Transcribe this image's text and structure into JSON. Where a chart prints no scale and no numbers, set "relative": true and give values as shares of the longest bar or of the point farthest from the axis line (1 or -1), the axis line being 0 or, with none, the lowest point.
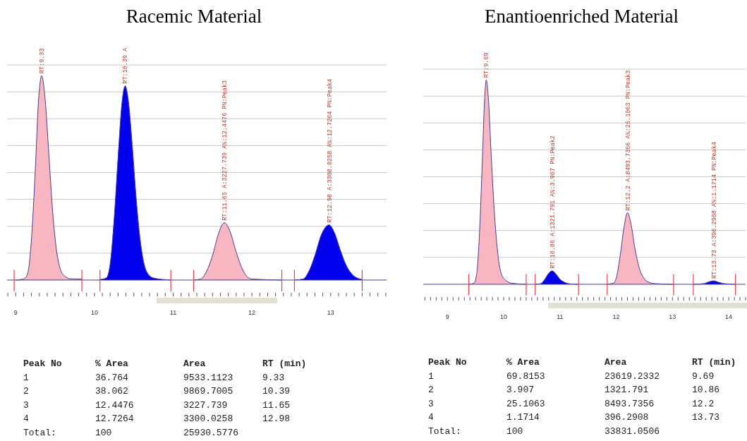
{
  "chart_data": [
    {
      "type": "area",
      "title": "Racemic Material",
      "relative": true,
      "grid": true,
      "xlim": [
        8.89,
        13.71
      ],
      "xticks": [
        {
          "value": 8.9,
          "label": null
        },
        9,
        {
          "value": 9.1,
          "label": null
        },
        {
          "value": 9.2,
          "label": null
        },
        {
          "value": 9.3,
          "label": null
        },
        {
          "value": 9.4,
          "label": null
        },
        {
          "value": 9.5,
          "label": null
        },
        {
          "value": 9.6,
          "label": null
        },
        {
          "value": 9.7,
          "label": null
        },
        {
          "value": 9.8,
          "label": null
        },
        {
          "value": 9.9,
          "label": null
        },
        10,
        {
          "value": 10.1,
          "label": null
        },
        {
          "value": 10.2,
          "label": null
        },
        {
          "value": 10.3,
          "label": null
        },
        {
          "value": 10.4,
          "label": null
        },
        {
          "value": 10.5,
          "label": null
        },
        {
          "value": 10.6,
          "label": null
        },
        {
          "value": 10.7,
          "label": null
        },
        {
          "value": 10.8,
          "label": null
        },
        {
          "value": 10.9,
          "label": null
        },
        11,
        {
          "value": 11.1,
          "label": null
        },
        {
          "value": 11.2,
          "label": null
        },
        {
          "value": 11.3,
          "label": null
        },
        {
          "value": 11.4,
          "label": null
        },
        {
          "value": 11.5,
          "label": null
        },
        {
          "value": 11.6,
          "label": null
        },
        {
          "value": 11.7,
          "label": null
        },
        {
          "value": 11.8,
          "label": null
        },
        {
          "value": 11.9,
          "label": null
        },
        12,
        {
          "value": 12.1,
          "label": null
        },
        {
          "value": 12.2,
          "label": null
        },
        {
          "value": 12.3,
          "label": null
        },
        {
          "value": 12.4,
          "label": null
        },
        {
          "value": 12.5,
          "label": null
        },
        {
          "value": 12.6,
          "label": null
        },
        {
          "value": 12.7,
          "label": null
        },
        {
          "value": 12.8,
          "label": null
        },
        {
          "value": 12.9,
          "label": null
        },
        13,
        {
          "value": 13.1,
          "label": null
        },
        {
          "value": 13.2,
          "label": null
        },
        {
          "value": 13.3,
          "label": null
        },
        {
          "value": 13.4,
          "label": null
        },
        {
          "value": 13.5,
          "label": null
        },
        {
          "value": 13.6,
          "label": null
        },
        {
          "value": 13.7,
          "label": null
        }
      ],
      "series": [
        {
          "type": "line",
          "color": "#4b3b8f",
          "x": [
            8.89,
            13.71
          ],
          "values": [
            0,
            0
          ]
        },
        {
          "type": "line",
          "color": "#e8404a",
          "x": [
            8.98,
            8.98
          ],
          "values": [
            -0.055,
            0.05
          ]
        },
        {
          "type": "line",
          "color": "#e8404a",
          "x": [
            9.84,
            9.84
          ],
          "values": [
            -0.055,
            0.05
          ]
        },
        {
          "type": "line",
          "color": "#e8404a",
          "x": [
            10.07,
            10.07
          ],
          "values": [
            -0.055,
            0.05
          ]
        },
        {
          "type": "line",
          "color": "#e8404a",
          "x": [
            10.97,
            10.97
          ],
          "values": [
            -0.055,
            0.05
          ]
        },
        {
          "type": "line",
          "color": "#e8404a",
          "x": [
            11.26,
            11.26
          ],
          "values": [
            -0.055,
            0.05
          ]
        },
        {
          "type": "line",
          "color": "#e8404a",
          "x": [
            12.38,
            12.38
          ],
          "values": [
            -0.055,
            0.05
          ]
        },
        {
          "type": "line",
          "color": "#e8404a",
          "x": [
            12.54,
            12.54
          ],
          "values": [
            -0.055,
            0.05
          ]
        },
        {
          "type": "line",
          "color": "#e8404a",
          "x": [
            13.4,
            13.4
          ],
          "values": [
            -0.055,
            0.05
          ]
        },
        {
          "color": "#f7b6c2",
          "x": [
            9.0,
            9.1,
            9.15,
            9.2,
            9.25,
            9.29,
            9.33,
            9.37,
            9.42,
            9.47,
            9.52,
            9.57,
            9.62,
            9.7,
            9.84
          ],
          "values": [
            0,
            0.005,
            0.03,
            0.2,
            0.55,
            0.88,
            1,
            0.9,
            0.62,
            0.33,
            0.14,
            0.05,
            0.02,
            0.006,
            0.005
          ]
        },
        {
          "color": "#0000ee",
          "x": [
            10.07,
            10.15,
            10.2,
            10.25,
            10.3,
            10.35,
            10.39,
            10.43,
            10.48,
            10.53,
            10.58,
            10.63,
            10.68,
            10.75,
            10.97
          ],
          "values": [
            0.003,
            0.01,
            0.08,
            0.3,
            0.6,
            0.87,
            0.95,
            0.88,
            0.66,
            0.4,
            0.2,
            0.08,
            0.03,
            0.01,
            0
          ]
        },
        {
          "color": "#f7b6c2",
          "x": [
            11.26,
            11.35,
            11.42,
            11.5,
            11.57,
            11.65,
            11.72,
            11.79,
            11.86,
            11.93,
            12.0,
            12.38
          ],
          "values": [
            0,
            0.005,
            0.04,
            0.12,
            0.22,
            0.28,
            0.24,
            0.15,
            0.07,
            0.02,
            0.005,
            0
          ]
        },
        {
          "color": "#0000ee",
          "x": [
            12.54,
            12.65,
            12.72,
            12.8,
            12.88,
            12.98,
            13.05,
            13.12,
            13.2,
            13.28,
            13.35,
            13.4
          ],
          "values": [
            0,
            0.005,
            0.04,
            0.12,
            0.22,
            0.27,
            0.23,
            0.15,
            0.07,
            0.025,
            0.008,
            0.003
          ]
        }
      ],
      "annotations": [
        {
          "text": "RT:9.33",
          "x": 9.33,
          "y": 1
        },
        {
          "text": "RT:10.39 A",
          "x": 10.39,
          "y": 0.95
        },
        {
          "text": "RT:11.65 A:3227.739 A%:12.4476 PN:Peak3",
          "x": 11.65,
          "y": 0.28
        },
        {
          "text": "RT:12.98 A:3300.0258 A%:12.7264 PN:Peak4",
          "x": 12.98,
          "y": 0.27
        },
        "Peak No",
        "% Area",
        "Area",
        "RT (min)",
        "1",
        "36.764",
        "9533.1123",
        "9.33",
        "2",
        "38.062",
        "9869.7005",
        "10.39",
        "3",
        "12.4476",
        "3227.739",
        "11.65",
        "4",
        "12.7264",
        "3300.0258",
        "12.98",
        "Total:",
        "100",
        "25930.5776"
      ]
    },
    {
      "type": "area",
      "title": "Enantioenriched Material",
      "relative": true,
      "grid": true,
      "xlim": [
        8.57,
        14.3
      ],
      "xticks": [
        {
          "value": 8.6,
          "label": null
        },
        {
          "value": 8.7,
          "label": null
        },
        {
          "value": 8.8,
          "label": null
        },
        {
          "value": 8.9,
          "label": null
        },
        9,
        {
          "value": 9.1,
          "label": null
        },
        {
          "value": 9.2,
          "label": null
        },
        {
          "value": 9.3,
          "label": null
        },
        {
          "value": 9.4,
          "label": null
        },
        {
          "value": 9.5,
          "label": null
        },
        {
          "value": 9.6,
          "label": null
        },
        {
          "value": 9.7,
          "label": null
        },
        {
          "value": 9.8,
          "label": null
        },
        {
          "value": 9.9,
          "label": null
        },
        10,
        {
          "value": 10.1,
          "label": null
        },
        {
          "value": 10.2,
          "label": null
        },
        {
          "value": 10.3,
          "label": null
        },
        {
          "value": 10.4,
          "label": null
        },
        {
          "value": 10.5,
          "label": null
        },
        {
          "value": 10.6,
          "label": null
        },
        {
          "value": 10.7,
          "label": null
        },
        {
          "value": 10.8,
          "label": null
        },
        {
          "value": 10.9,
          "label": null
        },
        11,
        {
          "value": 11.1,
          "label": null
        },
        {
          "value": 11.2,
          "label": null
        },
        {
          "value": 11.3,
          "label": null
        },
        {
          "value": 11.4,
          "label": null
        },
        {
          "value": 11.5,
          "label": null
        },
        {
          "value": 11.6,
          "label": null
        },
        {
          "value": 11.7,
          "label": null
        },
        {
          "value": 11.8,
          "label": null
        },
        {
          "value": 11.9,
          "label": null
        },
        12,
        {
          "value": 12.1,
          "label": null
        },
        {
          "value": 12.2,
          "label": null
        },
        {
          "value": 12.3,
          "label": null
        },
        {
          "value": 12.4,
          "label": null
        },
        {
          "value": 12.5,
          "label": null
        },
        {
          "value": 12.6,
          "label": null
        },
        {
          "value": 12.7,
          "label": null
        },
        {
          "value": 12.8,
          "label": null
        },
        {
          "value": 12.9,
          "label": null
        },
        13,
        {
          "value": 13.1,
          "label": null
        },
        {
          "value": 13.2,
          "label": null
        },
        {
          "value": 13.3,
          "label": null
        },
        {
          "value": 13.4,
          "label": null
        },
        {
          "value": 13.5,
          "label": null
        },
        {
          "value": 13.6,
          "label": null
        },
        {
          "value": 13.7,
          "label": null
        },
        {
          "value": 13.8,
          "label": null
        },
        {
          "value": 13.9,
          "label": null
        },
        14,
        {
          "value": 14.1,
          "label": null
        },
        {
          "value": 14.2,
          "label": null
        },
        {
          "value": 14.3,
          "label": null
        }
      ],
      "series": [
        {
          "type": "line",
          "color": "#4b3b8f",
          "x": [
            8.57,
            14.3
          ],
          "values": [
            0,
            0
          ]
        },
        {
          "type": "line",
          "color": "#e8404a",
          "x": [
            9.38,
            9.38
          ],
          "values": [
            -0.055,
            0.05
          ]
        },
        {
          "type": "line",
          "color": "#e8404a",
          "x": [
            10.4,
            10.4
          ],
          "values": [
            -0.055,
            0.05
          ]
        },
        {
          "type": "line",
          "color": "#e8404a",
          "x": [
            10.56,
            10.56
          ],
          "values": [
            -0.055,
            0.05
          ]
        },
        {
          "type": "line",
          "color": "#e8404a",
          "x": [
            11.33,
            11.33
          ],
          "values": [
            -0.055,
            0.05
          ]
        },
        {
          "type": "line",
          "color": "#e8404a",
          "x": [
            11.84,
            11.84
          ],
          "values": [
            -0.055,
            0.05
          ]
        },
        {
          "type": "line",
          "color": "#e8404a",
          "x": [
            13.02,
            13.02
          ],
          "values": [
            -0.055,
            0.05
          ]
        },
        {
          "type": "line",
          "color": "#e8404a",
          "x": [
            13.37,
            13.37
          ],
          "values": [
            -0.055,
            0.05
          ]
        },
        {
          "type": "line",
          "color": "#e8404a",
          "x": [
            14.12,
            14.12
          ],
          "values": [
            -0.055,
            0.05
          ]
        },
        {
          "color": "#f7b6c2",
          "x": [
            9.38,
            9.47,
            9.52,
            9.57,
            9.62,
            9.66,
            9.69,
            9.73,
            9.78,
            9.84,
            9.9,
            9.96,
            10.03,
            10.15,
            10.4
          ],
          "values": [
            0,
            0.005,
            0.05,
            0.25,
            0.6,
            0.9,
            1,
            0.9,
            0.62,
            0.33,
            0.14,
            0.05,
            0.02,
            0.005,
            0
          ]
        },
        {
          "color": "#0000ee",
          "x": [
            10.56,
            10.66,
            10.72,
            10.79,
            10.86,
            10.93,
            11.0,
            11.08,
            11.18,
            11.33
          ],
          "values": [
            0,
            0.003,
            0.02,
            0.05,
            0.066,
            0.05,
            0.025,
            0.01,
            0.002,
            0
          ]
        },
        {
          "color": "#f7b6c2",
          "x": [
            11.84,
            11.95,
            12.01,
            12.07,
            12.14,
            12.2,
            12.26,
            12.33,
            12.41,
            12.49,
            12.58,
            12.7,
            13.02
          ],
          "values": [
            0,
            0.005,
            0.04,
            0.14,
            0.28,
            0.35,
            0.3,
            0.18,
            0.08,
            0.03,
            0.01,
            0.003,
            0
          ]
        },
        {
          "color": "#0000ee",
          "x": [
            13.37,
            13.55,
            13.65,
            13.73,
            13.82,
            13.92,
            14.12
          ],
          "values": [
            0,
            0.003,
            0.012,
            0.017,
            0.01,
            0.003,
            0
          ]
        }
      ],
      "annotations": [
        {
          "text": "RT:9.69",
          "x": 9.69,
          "y": 1
        },
        {
          "text": "RT:10.86 A:1321.791 A%:3.907 PN:Peak2",
          "x": 10.86,
          "y": 0.066
        },
        {
          "text": "RT:12.2 A:8493.7356 A%:25.1063 PN:Peak3",
          "x": 12.2,
          "y": 0.35
        },
        {
          "text": "RT:13.73 A:396.2908 A%:1.1714 PN:Peak4",
          "x": 13.73,
          "y": 0.017
        },
        "Peak No",
        "% Area",
        "Area",
        "RT (min)",
        "1",
        "69.8153",
        "23619.2332",
        "9.69",
        "2",
        "3.907",
        "1321.791",
        "10.86",
        "3",
        "25.1063",
        "8493.7356",
        "12.2",
        "4",
        "1.1714",
        "396.2908",
        "13.73",
        "Total:",
        "100",
        "33831.0506"
      ]
    }
  ]
}
